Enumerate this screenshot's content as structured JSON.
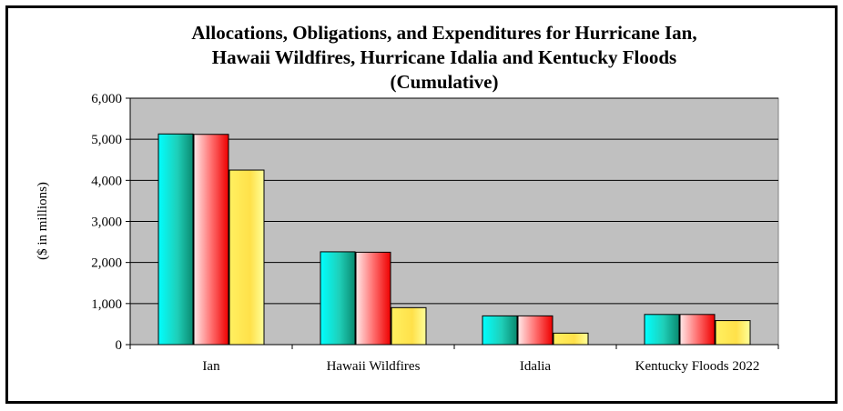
{
  "chart_data": {
    "type": "bar",
    "title_lines": [
      "Allocations, Obligations, and Expenditures for Hurricane Ian,",
      "Hawaii Wildfires, Hurricane Idalia and Kentucky Floods",
      "(Cumulative)"
    ],
    "ylabel": "($ in millions)",
    "xlabel": "",
    "ylim": [
      0,
      6000
    ],
    "yticks": [
      "0",
      "1,000",
      "2,000",
      "3,000",
      "4,000",
      "5,000",
      "6,000"
    ],
    "categories": [
      "Ian",
      "Hawaii Wildfires",
      "Idalia",
      "Kentucky Floods 2022"
    ],
    "series": [
      {
        "values": [
          5130,
          2260,
          700,
          735
        ],
        "color": "#1fd6c4"
      },
      {
        "values": [
          5120,
          2250,
          700,
          735
        ],
        "color": "#f04a5a"
      },
      {
        "values": [
          4250,
          900,
          280,
          585
        ],
        "color": "#ffe14a"
      }
    ],
    "grid": true,
    "plot_background": "#c0c0c0",
    "legend": "none"
  }
}
